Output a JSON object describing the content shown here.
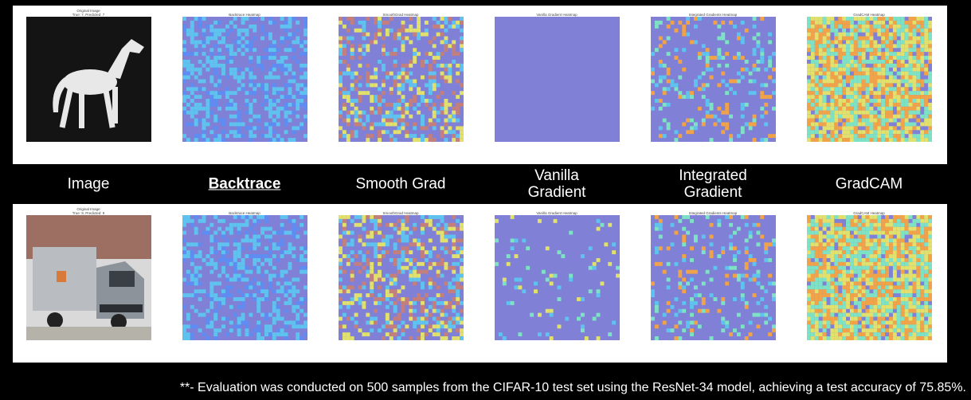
{
  "rows": [
    {
      "image_title": "Original Image",
      "image_caption": "True: 7, Predicted: 7",
      "subject": "horse",
      "panel_titles": [
        "Backtrace Heatmap",
        "SmoothGrad Heatmap",
        "Vanilla Gradient Heatmap",
        "Integrated Gradients Heatmap",
        "GradCAM Heatmap"
      ]
    },
    {
      "image_title": "Original Image",
      "image_caption": "True: 9, Predicted: 9",
      "subject": "truck",
      "panel_titles": [
        "Backtrace Heatmap",
        "SmoothGrad Heatmap",
        "Vanilla Gradient Heatmap",
        "Integrated Gradients Heatmap",
        "GradCAM Heatmap"
      ]
    }
  ],
  "method_labels": [
    "Image",
    "Backtrace",
    "Smooth Grad",
    "Vanilla\nGradient",
    "Integrated\nGradient",
    "GradCAM"
  ],
  "highlighted_method": "Backtrace",
  "footnote": "**- Evaluation was conducted on 500 samples from the CIFAR-10 test set using the ResNet-34 model, achieving a test accuracy of 75.85%.",
  "colors": {
    "background": "#000000",
    "panel": "#ffffff",
    "heatmap_base": "#7f80d6",
    "heatmap_scale": [
      "#7f80d6",
      "#5f8cf2",
      "#5fc3ef",
      "#7ee3c4",
      "#e2e16b",
      "#f2a347",
      "#c47f7c"
    ]
  }
}
